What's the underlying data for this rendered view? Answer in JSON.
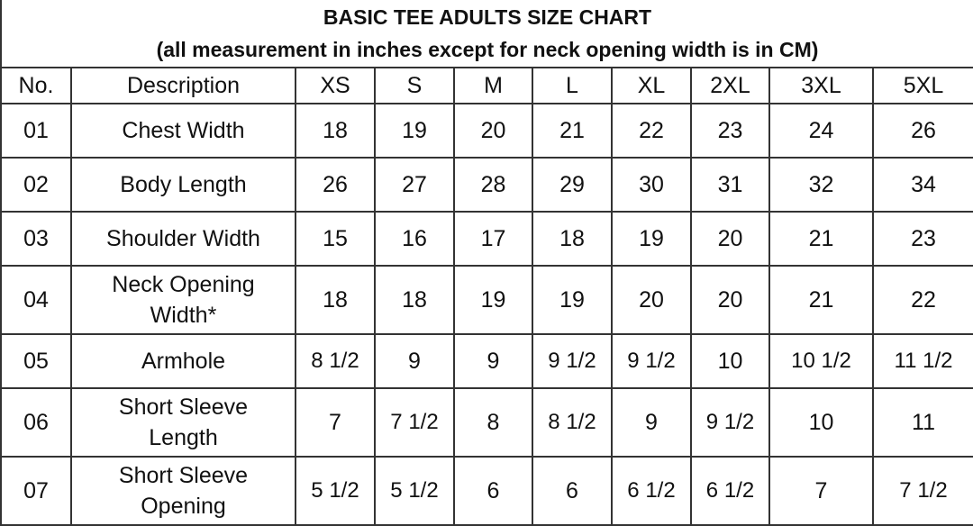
{
  "title": "BASIC TEE ADULTS SIZE CHART",
  "subtitle": "(all measurement in inches except for neck opening width is in CM)",
  "headers": [
    "No.",
    "Description",
    "XS",
    "S",
    "M",
    "L",
    "XL",
    "2XL",
    "3XL",
    "5XL"
  ],
  "rows": [
    {
      "no": "01",
      "description": "Chest Width",
      "values": [
        "18",
        "19",
        "20",
        "21",
        "22",
        "23",
        "24",
        "26"
      ]
    },
    {
      "no": "02",
      "description": "Body Length",
      "values": [
        "26",
        "27",
        "28",
        "29",
        "30",
        "31",
        "32",
        "34"
      ]
    },
    {
      "no": "03",
      "description": "Shoulder Width",
      "values": [
        "15",
        "16",
        "17",
        "18",
        "19",
        "20",
        "21",
        "23"
      ]
    },
    {
      "no": "04",
      "description": "Neck Opening Width*",
      "values": [
        "18",
        "18",
        "19",
        "19",
        "20",
        "20",
        "21",
        "22"
      ]
    },
    {
      "no": "05",
      "description": "Armhole",
      "values": [
        "8 1/2",
        "9",
        "9",
        "9 1/2",
        "9 1/2",
        "10",
        "10 1/2",
        "11 1/2"
      ]
    },
    {
      "no": "06",
      "description": "Short Sleeve Length",
      "values": [
        "7",
        "7 1/2",
        "8",
        "8 1/2",
        "9",
        "9 1/2",
        "10",
        "11"
      ]
    },
    {
      "no": "07",
      "description": "Short Sleeve Opening",
      "values": [
        "5 1/2",
        "5 1/2",
        "6",
        "6",
        "6 1/2",
        "6 1/2",
        "7",
        "7 1/2"
      ]
    }
  ]
}
